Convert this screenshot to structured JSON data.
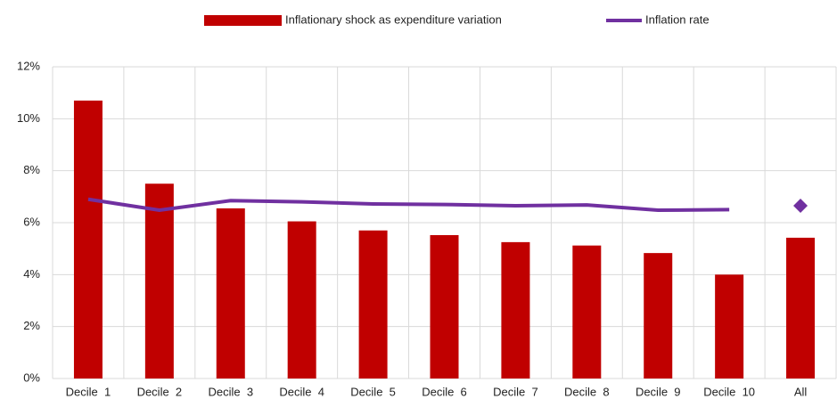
{
  "chart_data": {
    "type": "bar-line",
    "categories": [
      "Decile  1",
      "Decile  2",
      "Decile  3",
      "Decile  4",
      "Decile  5",
      "Decile  6",
      "Decile  7",
      "Decile  8",
      "Decile  9",
      "Decile  10",
      "All"
    ],
    "series": [
      {
        "name": "Inflationary shock as expenditure variation",
        "type": "bar",
        "color": "#c00000",
        "values": [
          10.7,
          7.5,
          6.55,
          6.05,
          5.7,
          5.52,
          5.25,
          5.12,
          4.83,
          4.0,
          5.42
        ]
      },
      {
        "name": "Inflation rate",
        "type": "line",
        "color": "#7030a0",
        "values": [
          6.9,
          6.48,
          6.85,
          6.8,
          6.72,
          6.7,
          6.65,
          6.68,
          6.48,
          6.5,
          6.65
        ]
      }
    ],
    "ylim": [
      0,
      12
    ],
    "yticks": [
      {
        "value": 0,
        "label": "0%"
      },
      {
        "value": 2,
        "label": "2%"
      },
      {
        "value": 4,
        "label": "4%"
      },
      {
        "value": 6,
        "label": "6%"
      },
      {
        "value": 8,
        "label": "8%"
      },
      {
        "value": 10,
        "label": "10%"
      },
      {
        "value": 12,
        "label": "12%"
      }
    ],
    "grid": true
  }
}
